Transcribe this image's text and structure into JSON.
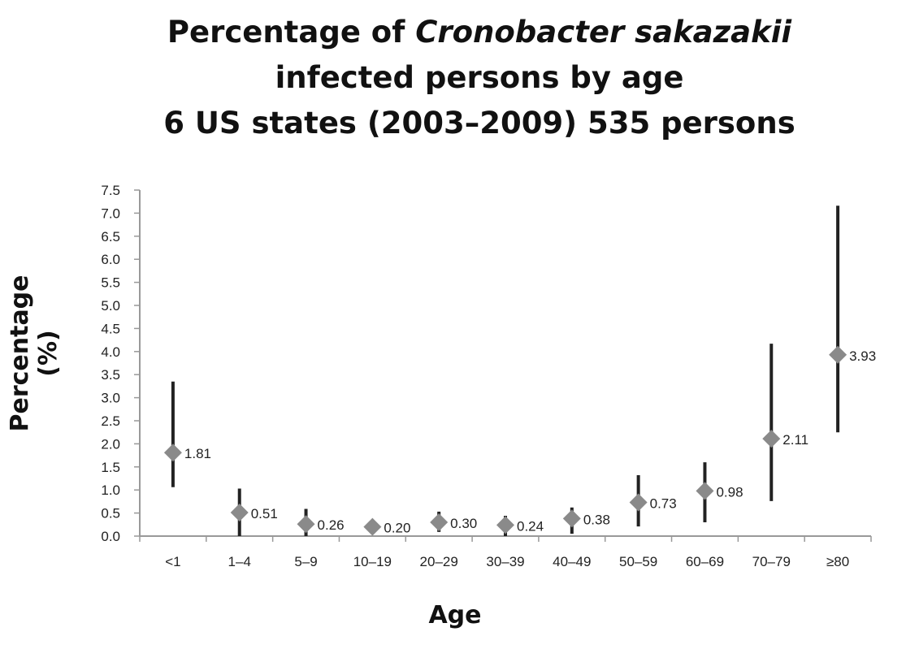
{
  "chart_data": {
    "type": "scatter",
    "title": {
      "line1_prefix": "Percentage of ",
      "line1_italic": "Cronobacter sakazakii",
      "line2": "infected persons by age",
      "line3": "6 US states (2003–2009) 535 persons"
    },
    "xlabel": "Age",
    "ylabel": "Percentage (%)",
    "ylim": [
      0,
      7.5
    ],
    "yticks": [
      "0.0",
      "0.5",
      "1.0",
      "1.5",
      "2.0",
      "2.5",
      "3.0",
      "3.5",
      "4.0",
      "4.5",
      "5.0",
      "5.5",
      "6.0",
      "6.5",
      "7.0",
      "7.5"
    ],
    "categories": [
      "<1",
      "1–4",
      "5–9",
      "10–19",
      "20–29",
      "30–39",
      "40–49",
      "50–59",
      "60–69",
      "70–79",
      "≥80"
    ],
    "values": [
      1.81,
      0.51,
      0.26,
      0.2,
      0.3,
      0.24,
      0.38,
      0.73,
      0.98,
      2.11,
      3.93
    ],
    "labels": [
      "1.81",
      "0.51",
      "0.26",
      "0.20",
      "0.30",
      "0.24",
      "0.38",
      "0.73",
      "0.98",
      "2.11",
      "3.93"
    ],
    "error_low": [
      1.06,
      0.0,
      0.0,
      0.12,
      0.09,
      0.0,
      0.05,
      0.21,
      0.3,
      0.76,
      2.25
    ],
    "error_high": [
      3.35,
      1.03,
      0.59,
      0.3,
      0.53,
      0.44,
      0.62,
      1.32,
      1.6,
      4.17,
      7.16
    ],
    "grid": false,
    "legend": "none",
    "colors": {
      "marker": "#8a8a8a",
      "error_bar": "#222222",
      "axis": "#999999"
    }
  }
}
